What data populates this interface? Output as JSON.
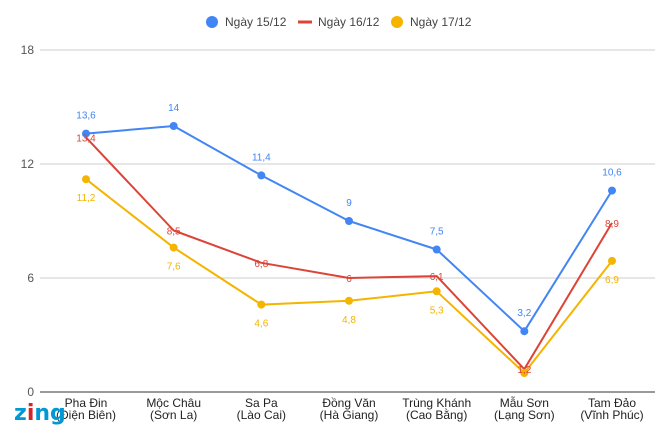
{
  "chart_data": {
    "type": "line",
    "title": "",
    "xlabel": "",
    "ylabel": "",
    "ylim": [
      0,
      18
    ],
    "yticks": [
      0,
      6,
      12,
      18
    ],
    "grid": true,
    "legend_position": "top-center",
    "categories": [
      [
        "Pha Đin",
        "(Điện Biên)"
      ],
      [
        "Mộc Châu",
        "(Sơn La)"
      ],
      [
        "Sa Pa",
        "(Lào Cai)"
      ],
      [
        "Đồng Văn",
        "(Hà Giang)"
      ],
      [
        "Trùng Khánh",
        "(Cao Bằng)"
      ],
      [
        "Mẫu Sơn",
        "(Lạng Sơn)"
      ],
      [
        "Tam Đảo",
        "(Vĩnh Phúc)"
      ]
    ],
    "series": [
      {
        "name": "Ngày 15/12",
        "color": "#4285f4",
        "values": [
          13.6,
          14,
          11.4,
          9,
          7.5,
          3.2,
          10.6
        ],
        "labels": [
          "13,6",
          "14",
          "11,4",
          "9",
          "7,5",
          "3,2",
          "10,6"
        ]
      },
      {
        "name": "Ngày 16/12",
        "color": "#db4437",
        "values": [
          13.4,
          8.5,
          6.8,
          6,
          6.1,
          1.2,
          8.9
        ],
        "labels": [
          "13,4",
          "8,5",
          "6,8",
          "6",
          "6,1",
          "1,2",
          "8,9"
        ]
      },
      {
        "name": "Ngày 17/12",
        "color": "#f4b400",
        "values": [
          11.2,
          7.6,
          4.6,
          4.8,
          5.3,
          1,
          6.9
        ],
        "labels": [
          "11,2",
          "7,6",
          "4,6",
          "4,8",
          "5,3",
          "",
          "6,9"
        ]
      }
    ]
  },
  "watermark": {
    "text": "zing",
    "letters": [
      "z",
      "i",
      "n",
      "g"
    ],
    "colors": [
      "#0099d6",
      "#d2242a",
      "#0099d6",
      "#0099d6"
    ]
  }
}
